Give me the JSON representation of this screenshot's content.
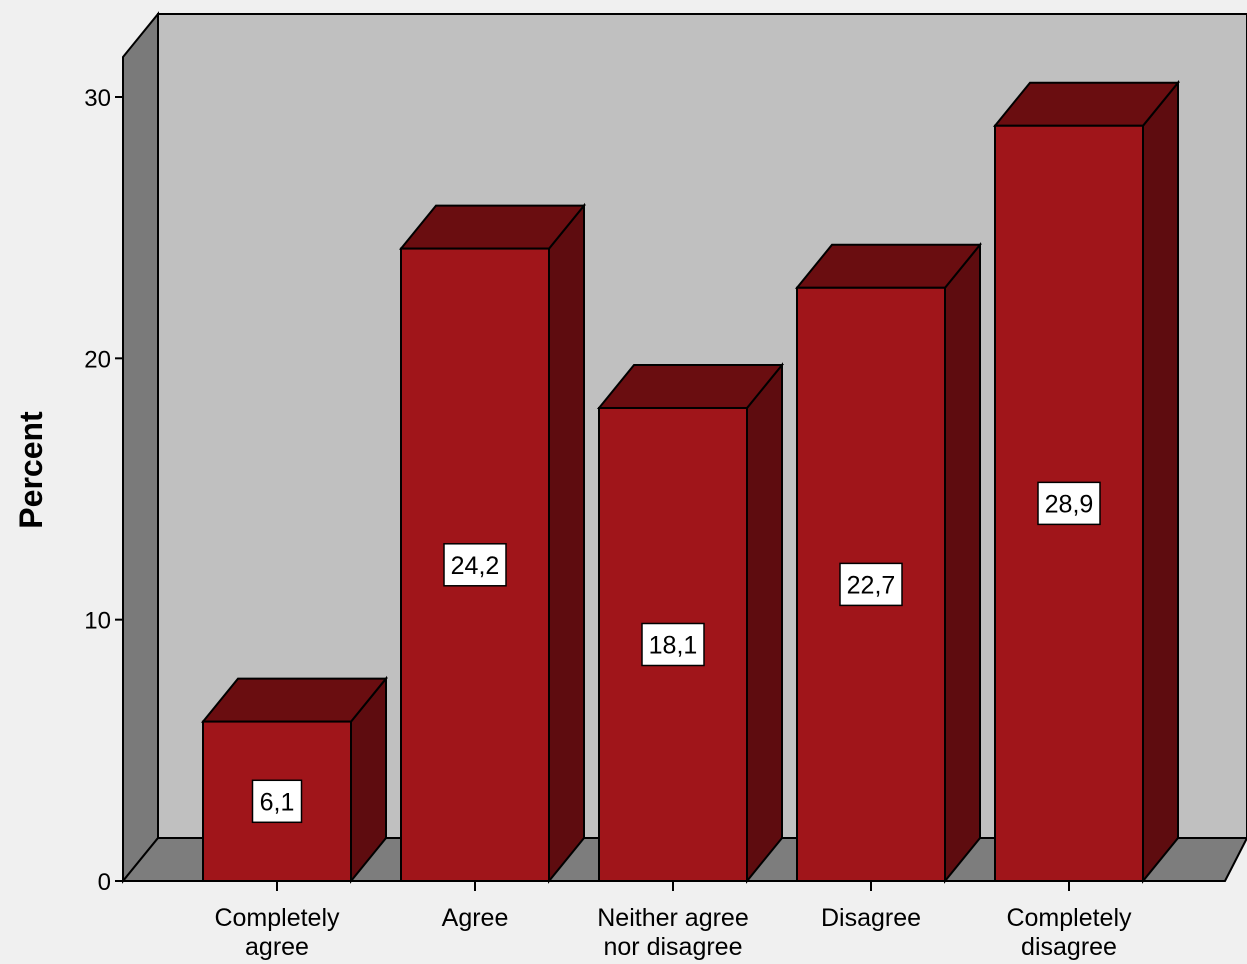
{
  "chart_data": {
    "type": "bar",
    "ylabel": "Percent",
    "xlabel": "",
    "ylim": [
      0,
      30
    ],
    "yticks": [
      "0",
      "10",
      "20",
      "30"
    ],
    "categories": [
      [
        "Completely",
        "agree"
      ],
      [
        "Agree"
      ],
      [
        "Neither agree",
        "nor disagree"
      ],
      [
        "Disagree"
      ],
      [
        "Completely",
        "disagree"
      ]
    ],
    "values": [
      6.1,
      24.2,
      18.1,
      22.7,
      28.9
    ],
    "value_labels": [
      "6,1",
      "24,2",
      "18,1",
      "22,7",
      "28,9"
    ],
    "style": "3d",
    "grid": false,
    "legend": "none",
    "colors": {
      "bar_front": "#a0151a",
      "bar_top": "#6a0d10",
      "bar_side": "#5e0c0f",
      "back_wall": "#c0c0c0",
      "side_wall": "#7a7a7a",
      "floor": "#7d7d7d",
      "background": "#f0f0f0"
    }
  }
}
